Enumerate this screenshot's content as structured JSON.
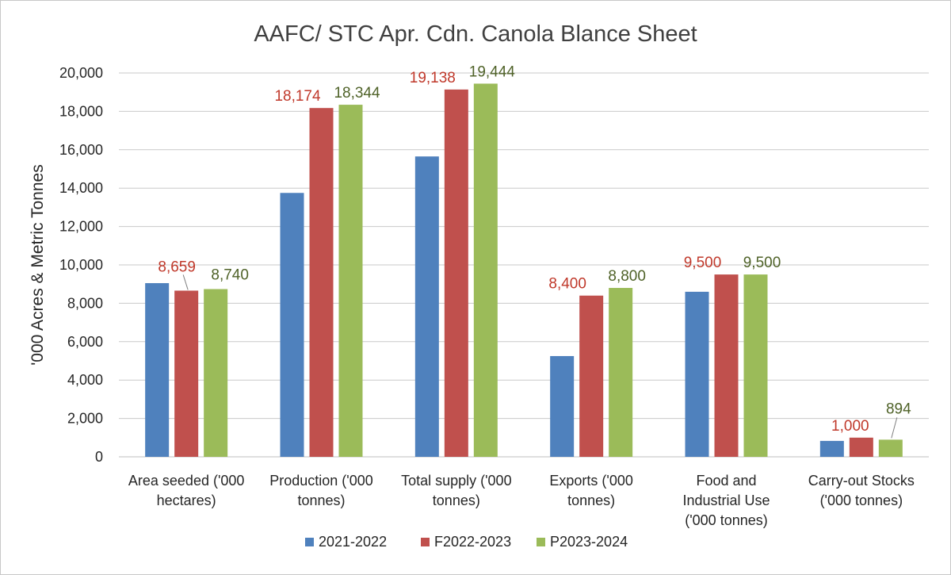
{
  "chart_data": {
    "type": "bar",
    "title": "AAFC/ STC Apr. Cdn. Canola Blance Sheet",
    "ylabel": "'000 Acres & Metric Tonnes",
    "xlabel": "",
    "ylim": [
      0,
      20000
    ],
    "yticks": [
      0,
      2000,
      4000,
      6000,
      8000,
      10000,
      12000,
      14000,
      16000,
      18000,
      20000
    ],
    "ytick_labels": [
      "0",
      "2,000",
      "4,000",
      "6,000",
      "8,000",
      "10,000",
      "12,000",
      "14,000",
      "16,000",
      "18,000",
      "20,000"
    ],
    "grid": true,
    "legend_position": "bottom",
    "categories": [
      [
        "Area seeded ('000",
        "hectares)"
      ],
      [
        "Production ('000",
        "tonnes)"
      ],
      [
        "Total supply ('000",
        "tonnes)"
      ],
      [
        "Exports ('000",
        "tonnes)"
      ],
      [
        "Food and",
        "Industrial Use",
        "('000 tonnes)"
      ],
      [
        "Carry-out Stocks",
        "('000 tonnes)"
      ]
    ],
    "series": [
      {
        "name": "2021-2022",
        "color": "#4f81bd",
        "label_color": "#4f81bd",
        "values": [
          9050,
          13750,
          15650,
          5250,
          8600,
          830
        ],
        "labels": [
          null,
          null,
          null,
          null,
          null,
          null
        ]
      },
      {
        "name": "F2022-2023",
        "color": "#c0504d",
        "label_color": "#c0392b",
        "values": [
          8659,
          18174,
          19138,
          8400,
          9500,
          1000
        ],
        "labels": [
          "8,659",
          "18,174",
          "19,138",
          "8,400",
          "9,500",
          "1,000"
        ]
      },
      {
        "name": "P2023-2024",
        "color": "#9bbb59",
        "label_color": "#4f6228",
        "values": [
          8740,
          18344,
          19444,
          8800,
          9500,
          894
        ],
        "labels": [
          "8,740",
          "18,344",
          "19,444",
          "8,800",
          "9,500",
          "894"
        ]
      }
    ]
  }
}
